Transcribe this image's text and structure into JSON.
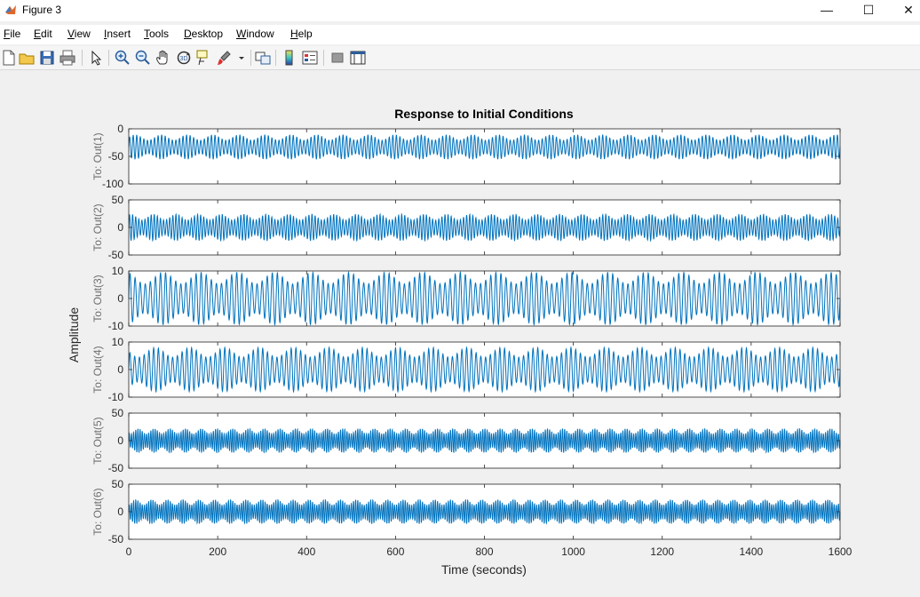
{
  "window": {
    "title": "Figure 3",
    "controls": {
      "minimize": "—",
      "maximize": "☐",
      "close": "✕"
    }
  },
  "menu": [
    {
      "label": "File",
      "key": "F",
      "rest": "ile"
    },
    {
      "label": "Edit",
      "key": "E",
      "rest": "dit"
    },
    {
      "label": "View",
      "key": "V",
      "rest": "iew"
    },
    {
      "label": "Insert",
      "key": "I",
      "rest": "nsert"
    },
    {
      "label": "Tools",
      "key": "T",
      "rest": "ools"
    },
    {
      "label": "Desktop",
      "key": "D",
      "rest": "esktop"
    },
    {
      "label": "Window",
      "key": "W",
      "rest": "indow"
    },
    {
      "label": "Help",
      "key": "H",
      "rest": "elp"
    }
  ],
  "toolbar": [
    "new-figure-icon",
    "open-file-icon",
    "save-icon",
    "print-icon",
    "edit-plot-icon",
    "zoom-in-icon",
    "zoom-out-icon",
    "pan-icon",
    "rotate-3d-icon",
    "data-cursor-icon",
    "brush-icon",
    "link-plot-icon",
    "colorbar-icon",
    "legend-icon",
    "hide-plot-tools-icon",
    "show-plot-tools-icon"
  ],
  "chart_data": {
    "type": "line",
    "title": "Response to Initial Conditions",
    "xlabel": "Time (seconds)",
    "ylabel": "Amplitude",
    "xlim": [
      0,
      1600
    ],
    "xticks": [
      0,
      200,
      400,
      600,
      800,
      1000,
      1200,
      1400,
      1600
    ],
    "line_color": "#0072bd",
    "grid": false,
    "subplots": [
      {
        "name": "To: Out(1)",
        "ylim": [
          -100,
          0
        ],
        "yticks": [
          0,
          -50,
          -100
        ],
        "center": -33,
        "amplitude": 22,
        "cycles": 200
      },
      {
        "name": "To: Out(2)",
        "ylim": [
          -50,
          50
        ],
        "yticks": [
          50,
          0,
          -50
        ],
        "center": 0,
        "amplitude": 24,
        "cycles": 230
      },
      {
        "name": "To: Out(3)",
        "ylim": [
          -10,
          10
        ],
        "yticks": [
          10,
          0,
          -10
        ],
        "center": 0,
        "amplitude": 9.5,
        "cycles": 140
      },
      {
        "name": "To: Out(4)",
        "ylim": [
          -10,
          10
        ],
        "yticks": [
          10,
          0,
          -10
        ],
        "center": 0,
        "amplitude": 8,
        "cycles": 150
      },
      {
        "name": "To: Out(5)",
        "ylim": [
          -50,
          50
        ],
        "yticks": [
          50,
          0,
          -50
        ],
        "center": 0,
        "amplitude": 22,
        "cycles": 330
      },
      {
        "name": "To: Out(6)",
        "ylim": [
          -50,
          50
        ],
        "yticks": [
          50,
          0,
          -50
        ],
        "center": 0,
        "amplitude": 22,
        "cycles": 330
      }
    ]
  }
}
